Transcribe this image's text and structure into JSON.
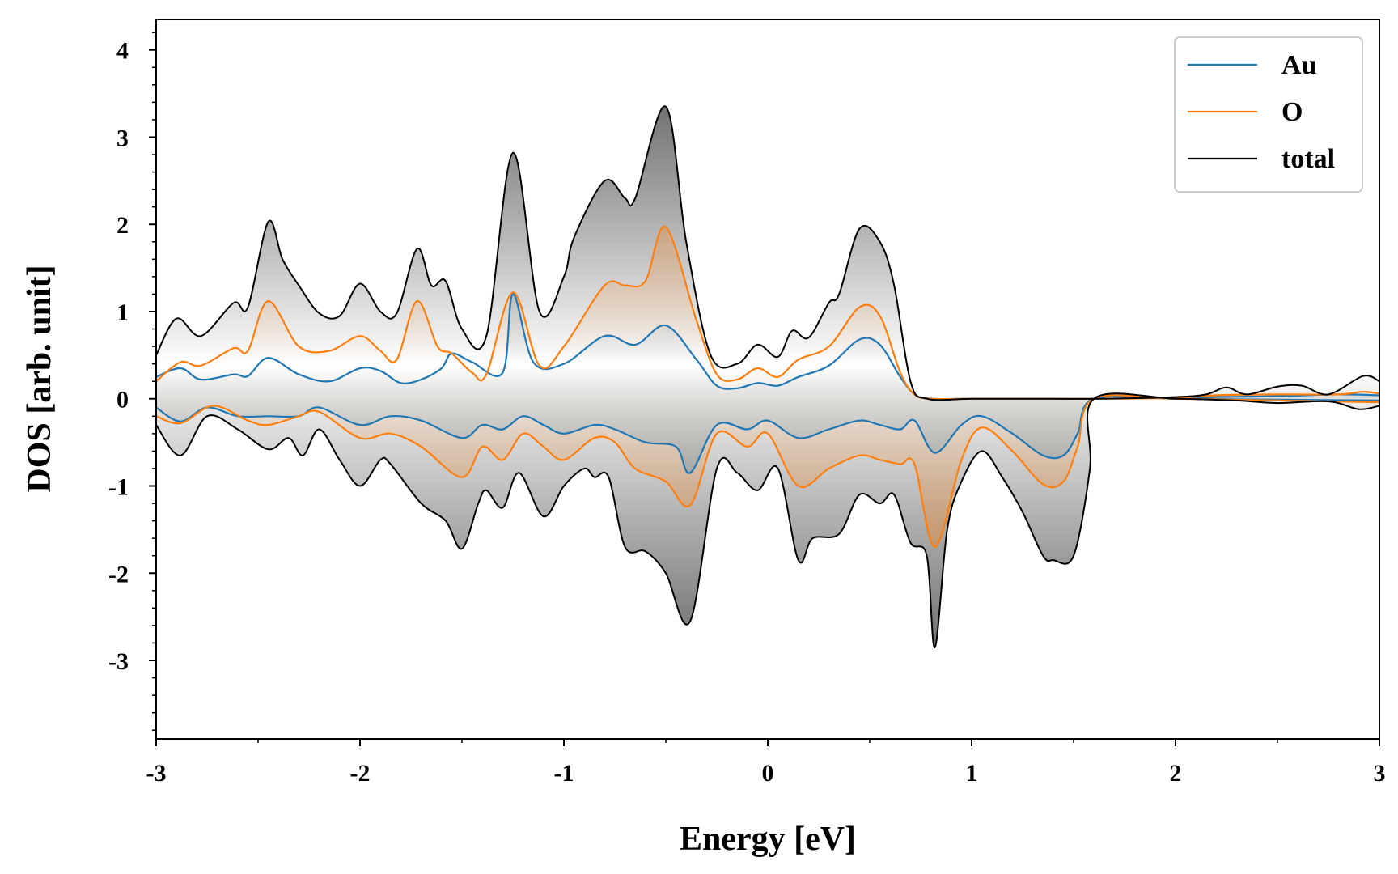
{
  "chart_data": {
    "type": "line",
    "title": "",
    "xlabel": "Energy [eV]",
    "ylabel": "DOS [arb. unit]",
    "xlim": [
      -3,
      3
    ],
    "ylim": [
      -3.9,
      4.35
    ],
    "xticks": [
      -3,
      -2,
      -1,
      0,
      1,
      2,
      3
    ],
    "xtick_labels": [
      "-3",
      "-2",
      "-1",
      "0",
      "1",
      "2",
      "3"
    ],
    "yticks": [
      -3,
      -2,
      -1,
      0,
      1,
      2,
      3,
      4
    ],
    "ytick_labels": [
      "-3",
      "-2",
      "-1",
      "0",
      "1",
      "2",
      "3",
      "4"
    ],
    "grid": false,
    "legend_position": "top-right",
    "fill_under_curves": true,
    "series": [
      {
        "name": "Au",
        "color": "#1f77b4",
        "up": {
          "x": [
            -3.0,
            -2.88,
            -2.78,
            -2.62,
            -2.55,
            -2.45,
            -2.3,
            -2.15,
            -2.0,
            -1.9,
            -1.8,
            -1.7,
            -1.6,
            -1.55,
            -1.45,
            -1.3,
            -1.25,
            -1.15,
            -1.0,
            -0.8,
            -0.65,
            -0.5,
            -0.35,
            -0.25,
            -0.15,
            -0.05,
            0.05,
            0.15,
            0.3,
            0.45,
            0.55,
            0.65,
            0.72,
            0.8,
            1.0,
            1.3,
            1.6,
            2.0,
            2.2,
            2.5,
            2.8,
            3.0
          ],
          "y": [
            0.25,
            0.35,
            0.22,
            0.28,
            0.26,
            0.47,
            0.28,
            0.2,
            0.35,
            0.32,
            0.18,
            0.22,
            0.35,
            0.52,
            0.42,
            0.3,
            1.2,
            0.42,
            0.4,
            0.72,
            0.62,
            0.84,
            0.45,
            0.15,
            0.12,
            0.18,
            0.15,
            0.25,
            0.38,
            0.68,
            0.62,
            0.25,
            0.05,
            0.0,
            0.0,
            0.0,
            0.0,
            0.01,
            0.02,
            0.03,
            0.05,
            0.04
          ]
        },
        "down": {
          "x": [
            -3.0,
            -2.88,
            -2.75,
            -2.6,
            -2.45,
            -2.3,
            -2.2,
            -2.0,
            -1.85,
            -1.7,
            -1.5,
            -1.4,
            -1.3,
            -1.2,
            -1.1,
            -1.0,
            -0.85,
            -0.75,
            -0.6,
            -0.45,
            -0.38,
            -0.25,
            -0.1,
            0.0,
            0.15,
            0.3,
            0.45,
            0.55,
            0.65,
            0.72,
            0.82,
            0.95,
            1.05,
            1.2,
            1.35,
            1.45,
            1.52,
            1.6,
            2.0,
            2.5,
            3.0
          ],
          "y": [
            -0.1,
            -0.26,
            -0.1,
            -0.2,
            -0.2,
            -0.2,
            -0.1,
            -0.3,
            -0.2,
            -0.25,
            -0.45,
            -0.3,
            -0.35,
            -0.2,
            -0.3,
            -0.4,
            -0.3,
            -0.35,
            -0.5,
            -0.55,
            -0.85,
            -0.3,
            -0.35,
            -0.25,
            -0.45,
            -0.35,
            -0.25,
            -0.3,
            -0.35,
            -0.25,
            -0.62,
            -0.3,
            -0.2,
            -0.4,
            -0.65,
            -0.65,
            -0.4,
            0.0,
            0.0,
            -0.01,
            -0.02
          ]
        }
      },
      {
        "name": "O",
        "color": "#ff7f0e",
        "up": {
          "x": [
            -3.0,
            -2.88,
            -2.78,
            -2.62,
            -2.55,
            -2.45,
            -2.3,
            -2.15,
            -2.0,
            -1.9,
            -1.82,
            -1.72,
            -1.62,
            -1.55,
            -1.45,
            -1.38,
            -1.25,
            -1.12,
            -1.0,
            -0.8,
            -0.7,
            -0.6,
            -0.5,
            -0.35,
            -0.25,
            -0.15,
            -0.05,
            0.05,
            0.15,
            0.3,
            0.45,
            0.55,
            0.65,
            0.72,
            0.8,
            1.0,
            1.3,
            1.6,
            2.0,
            2.2,
            2.5,
            2.8,
            2.92,
            3.0
          ],
          "y": [
            0.2,
            0.42,
            0.38,
            0.58,
            0.55,
            1.12,
            0.6,
            0.55,
            0.72,
            0.55,
            0.45,
            1.12,
            0.6,
            0.52,
            0.3,
            0.28,
            1.22,
            0.38,
            0.6,
            1.3,
            1.3,
            1.35,
            1.97,
            0.9,
            0.28,
            0.22,
            0.35,
            0.25,
            0.45,
            0.6,
            1.05,
            0.95,
            0.3,
            0.05,
            0.0,
            0.0,
            0.0,
            0.0,
            0.01,
            0.04,
            0.05,
            0.05,
            0.08,
            0.06
          ]
        },
        "down": {
          "x": [
            -3.0,
            -2.88,
            -2.72,
            -2.55,
            -2.45,
            -2.3,
            -2.2,
            -2.0,
            -1.85,
            -1.7,
            -1.5,
            -1.4,
            -1.3,
            -1.2,
            -1.1,
            -1.0,
            -0.85,
            -0.75,
            -0.65,
            -0.5,
            -0.38,
            -0.25,
            -0.1,
            0.0,
            0.15,
            0.3,
            0.45,
            0.55,
            0.65,
            0.72,
            0.82,
            0.95,
            1.05,
            1.2,
            1.35,
            1.45,
            1.52,
            1.6,
            2.0,
            2.5,
            3.0
          ],
          "y": [
            -0.2,
            -0.28,
            -0.08,
            -0.25,
            -0.3,
            -0.2,
            -0.15,
            -0.45,
            -0.4,
            -0.55,
            -0.9,
            -0.55,
            -0.7,
            -0.4,
            -0.55,
            -0.7,
            -0.45,
            -0.5,
            -0.8,
            -0.95,
            -1.22,
            -0.4,
            -0.55,
            -0.4,
            -1.0,
            -0.8,
            -0.65,
            -0.7,
            -0.75,
            -0.75,
            -1.7,
            -0.7,
            -0.33,
            -0.6,
            -0.98,
            -0.95,
            -0.55,
            0.0,
            0.0,
            -0.02,
            -0.04
          ]
        }
      },
      {
        "name": "total",
        "color": "#000000",
        "up": {
          "x": [
            -3.0,
            -2.9,
            -2.78,
            -2.62,
            -2.55,
            -2.45,
            -2.38,
            -2.3,
            -2.2,
            -2.1,
            -2.0,
            -1.9,
            -1.82,
            -1.72,
            -1.65,
            -1.58,
            -1.5,
            -1.38,
            -1.25,
            -1.12,
            -1.0,
            -0.95,
            -0.8,
            -0.7,
            -0.65,
            -0.5,
            -0.4,
            -0.28,
            -0.15,
            -0.05,
            0.05,
            0.12,
            0.2,
            0.3,
            0.35,
            0.45,
            0.55,
            0.62,
            0.7,
            0.78,
            1.0,
            1.3,
            1.6,
            2.0,
            2.15,
            2.25,
            2.35,
            2.5,
            2.62,
            2.75,
            2.92,
            3.0
          ],
          "y": [
            0.5,
            0.92,
            0.72,
            1.1,
            1.05,
            2.03,
            1.6,
            1.3,
            0.98,
            0.95,
            1.32,
            1.0,
            0.98,
            1.72,
            1.3,
            1.35,
            0.8,
            0.72,
            2.82,
            1.0,
            1.4,
            1.85,
            2.5,
            2.3,
            2.3,
            3.35,
            1.8,
            0.5,
            0.4,
            0.62,
            0.48,
            0.78,
            0.7,
            1.1,
            1.2,
            1.95,
            1.8,
            1.3,
            0.2,
            0.0,
            0.0,
            0.0,
            0.0,
            0.02,
            0.05,
            0.13,
            0.05,
            0.14,
            0.15,
            0.05,
            0.26,
            0.2
          ]
        },
        "down": {
          "x": [
            -3.0,
            -2.88,
            -2.75,
            -2.6,
            -2.45,
            -2.35,
            -2.28,
            -2.2,
            -2.1,
            -2.0,
            -1.9,
            -1.85,
            -1.7,
            -1.58,
            -1.5,
            -1.42,
            -1.38,
            -1.3,
            -1.22,
            -1.1,
            -1.0,
            -0.9,
            -0.85,
            -0.78,
            -0.7,
            -0.6,
            -0.5,
            -0.38,
            -0.25,
            -0.15,
            -0.05,
            0.05,
            0.15,
            0.22,
            0.35,
            0.45,
            0.55,
            0.62,
            0.7,
            0.78,
            0.82,
            0.88,
            0.95,
            1.05,
            1.15,
            1.25,
            1.35,
            1.4,
            1.5,
            1.58,
            1.6,
            2.0,
            2.3,
            2.5,
            2.75,
            2.9,
            3.0
          ],
          "y": [
            -0.3,
            -0.65,
            -0.2,
            -0.35,
            -0.58,
            -0.45,
            -0.65,
            -0.35,
            -0.7,
            -1.0,
            -0.7,
            -0.75,
            -1.2,
            -1.4,
            -1.72,
            -1.2,
            -1.05,
            -1.25,
            -0.85,
            -1.35,
            -1.0,
            -0.8,
            -0.9,
            -0.9,
            -1.7,
            -1.75,
            -2.0,
            -2.55,
            -0.8,
            -0.85,
            -1.05,
            -0.8,
            -1.85,
            -1.6,
            -1.55,
            -1.1,
            -1.2,
            -1.1,
            -1.65,
            -1.8,
            -2.85,
            -1.5,
            -0.95,
            -0.6,
            -0.9,
            -1.3,
            -1.8,
            -1.85,
            -1.8,
            -0.8,
            0.0,
            0.0,
            -0.02,
            -0.05,
            -0.03,
            -0.12,
            -0.08
          ]
        }
      }
    ]
  }
}
